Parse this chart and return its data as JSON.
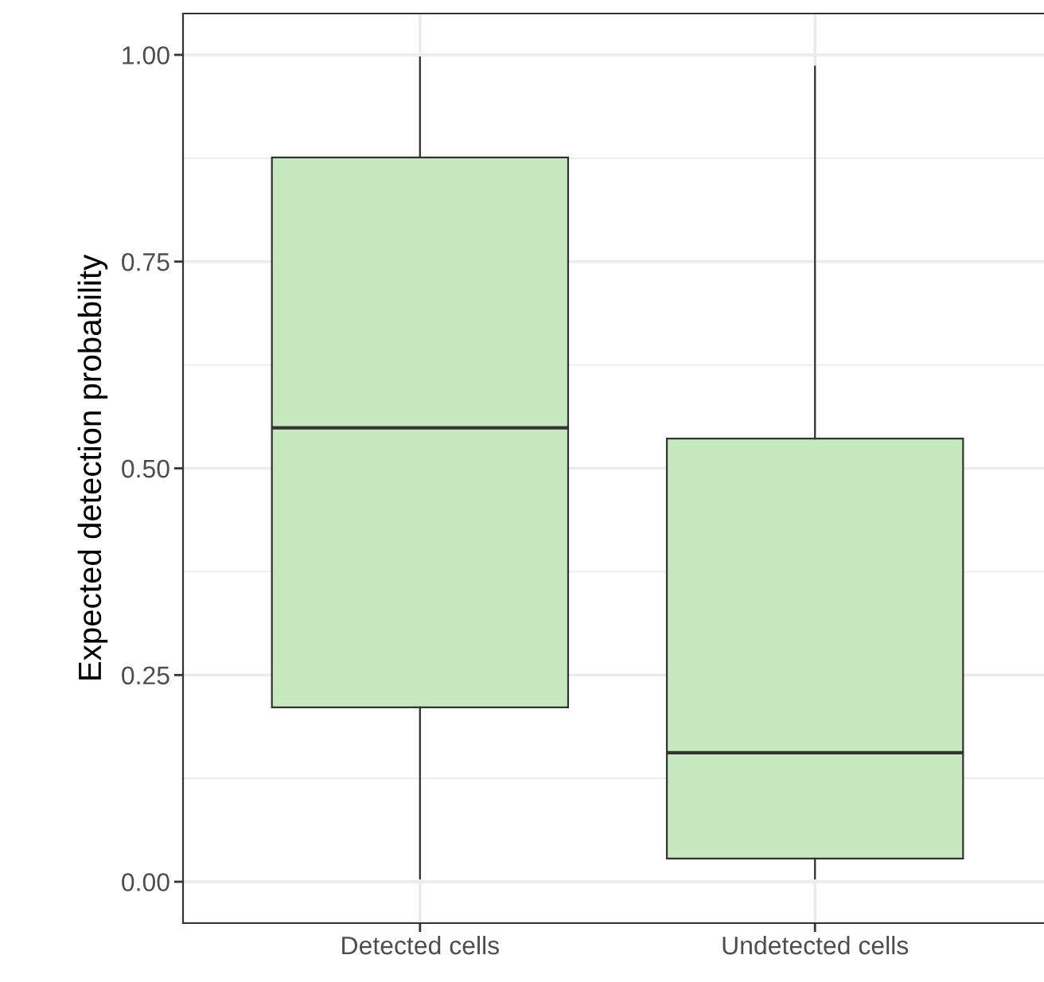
{
  "chart_data": {
    "type": "box",
    "ylabel": "Expected detection probability",
    "categories": [
      "Detected cells",
      "Undetected cells"
    ],
    "series": [
      {
        "color": "#c7e9c0",
        "boxes": [
          {
            "low": 0.004,
            "q1": 0.211,
            "median": 0.549,
            "q3": 0.876,
            "high": 0.997
          },
          {
            "low": 0.004,
            "q1": 0.028,
            "median": 0.156,
            "q3": 0.536,
            "high": 0.986
          }
        ]
      }
    ],
    "ylim": [
      -0.05,
      1.05
    ],
    "yticks": [
      {
        "value": 0,
        "label": "0.00"
      },
      {
        "value": 0.25,
        "label": "0.25"
      },
      {
        "value": 0.5,
        "label": "0.50"
      },
      {
        "value": 0.75,
        "label": "0.75"
      },
      {
        "value": 1,
        "label": "1.00"
      }
    ],
    "grid": true
  }
}
